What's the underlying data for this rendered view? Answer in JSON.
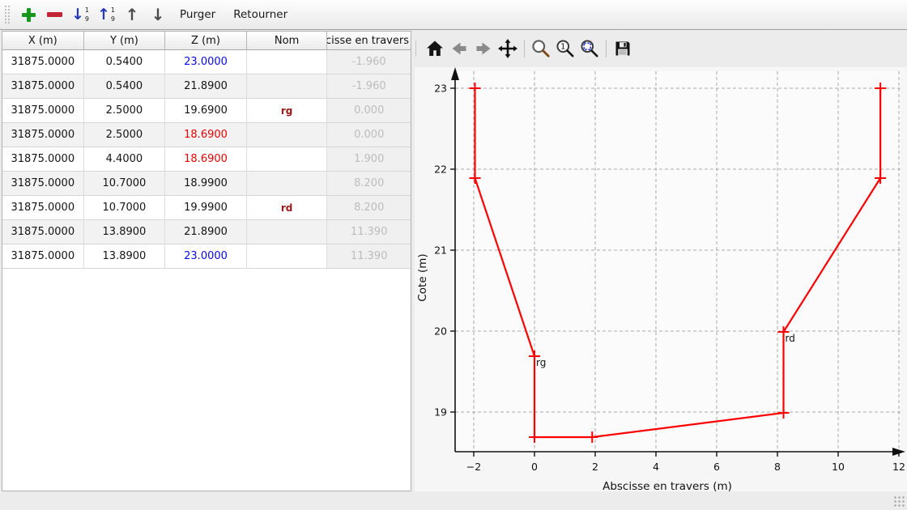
{
  "toolbar": {
    "purger_label": "Purger",
    "retourner_label": "Retourner",
    "sort_digit_top": "1",
    "sort_digit_bottom": "9"
  },
  "table": {
    "headers": [
      "X (m)",
      "Y (m)",
      "Z (m)",
      "Nom",
      "Abscisse en travers"
    ],
    "rows": [
      {
        "x": "31875.0000",
        "y": "0.5400",
        "z": "23.0000",
        "z_color": "blue",
        "nom": "",
        "absc": "-1.960"
      },
      {
        "x": "31875.0000",
        "y": "0.5400",
        "z": "21.8900",
        "z_color": "black",
        "nom": "",
        "absc": "-1.960"
      },
      {
        "x": "31875.0000",
        "y": "2.5000",
        "z": "19.6900",
        "z_color": "black",
        "nom": "rg",
        "absc": "0.000"
      },
      {
        "x": "31875.0000",
        "y": "2.5000",
        "z": "18.6900",
        "z_color": "red",
        "nom": "",
        "absc": "0.000"
      },
      {
        "x": "31875.0000",
        "y": "4.4000",
        "z": "18.6900",
        "z_color": "red",
        "nom": "",
        "absc": "1.900"
      },
      {
        "x": "31875.0000",
        "y": "10.7000",
        "z": "18.9900",
        "z_color": "black",
        "nom": "",
        "absc": "8.200"
      },
      {
        "x": "31875.0000",
        "y": "10.7000",
        "z": "19.9900",
        "z_color": "black",
        "nom": "rd",
        "absc": "8.200"
      },
      {
        "x": "31875.0000",
        "y": "13.8900",
        "z": "21.8900",
        "z_color": "black",
        "nom": "",
        "absc": "11.390"
      },
      {
        "x": "31875.0000",
        "y": "13.8900",
        "z": "23.0000",
        "z_color": "blue",
        "nom": "",
        "absc": "11.390"
      }
    ]
  },
  "plot_toolbar": {
    "icons": [
      "home-icon",
      "back-icon",
      "forward-icon",
      "pan-icon",
      "zoom-icon",
      "zoom-one-icon",
      "zoom-rect-icon",
      "save-icon"
    ],
    "zoom_one_label": "1"
  },
  "chart_data": {
    "type": "line",
    "title": "",
    "xlabel": "Abscisse en travers (m)",
    "ylabel": "Cote (m)",
    "line_color": "#ff0000",
    "marker": "plus",
    "x": [
      -1.96,
      -1.96,
      0.0,
      0.0,
      1.9,
      8.2,
      8.2,
      11.39,
      11.39
    ],
    "y": [
      23.0,
      21.89,
      19.69,
      18.69,
      18.69,
      18.99,
      19.99,
      21.89,
      23.0
    ],
    "point_labels": [
      {
        "text": "rg",
        "x": 0.0,
        "y": 19.69
      },
      {
        "text": "rd",
        "x": 8.2,
        "y": 19.99
      }
    ],
    "xticks": [
      -2,
      0,
      2,
      4,
      6,
      8,
      10,
      12
    ],
    "yticks": [
      19,
      20,
      21,
      22,
      23
    ],
    "xlim": [
      -2.613,
      12.053
    ],
    "ylim": [
      18.51,
      23.21
    ],
    "grid": true,
    "grid_color": "#a8a8a8",
    "axes_bg": "#fbfbfb",
    "legend": "none"
  }
}
